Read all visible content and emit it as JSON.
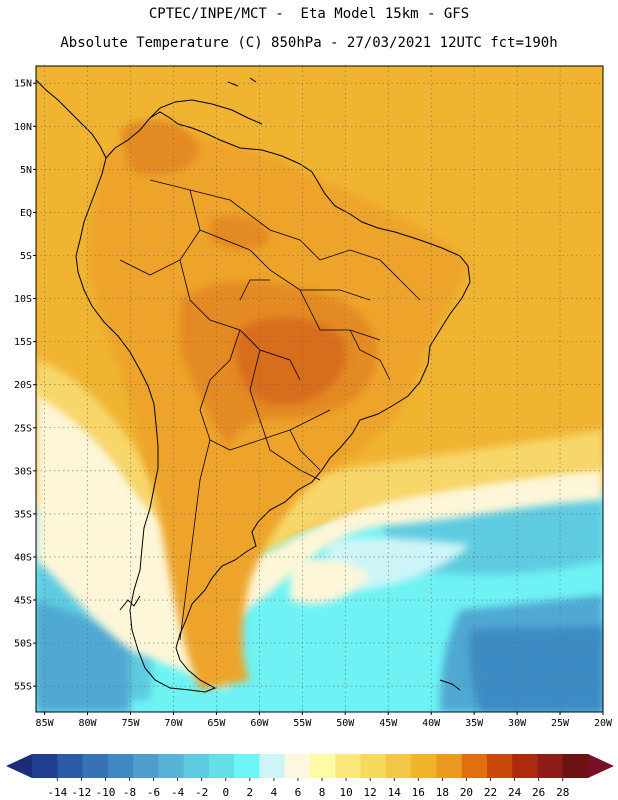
{
  "header": {
    "line1": "CPTEC/INPE/MCT -  Eta Model 15km - GFS",
    "line2": "Absolute Temperature (C) 850hPa - 27/03/2021 12UTC fct=190h"
  },
  "map": {
    "lat_labels": [
      "15N",
      "10N",
      "5N",
      "EQ",
      "5S",
      "10S",
      "15S",
      "20S",
      "25S",
      "30S",
      "35S",
      "40S",
      "45S",
      "50S",
      "55S"
    ],
    "lon_labels": [
      "85W",
      "80W",
      "75W",
      "70W",
      "65W",
      "60W",
      "55W",
      "50W",
      "45W",
      "40W",
      "35W",
      "30W",
      "25W",
      "20W"
    ]
  },
  "colorbar": {
    "labels": [
      "-14",
      "-12",
      "-10",
      "-8",
      "-6",
      "-4",
      "-2",
      "0",
      "2",
      "4",
      "6",
      "8",
      "10",
      "12",
      "14",
      "16",
      "18",
      "20",
      "22",
      "24",
      "26",
      "28"
    ],
    "colors": [
      "#1f3e8f",
      "#2b5aa6",
      "#3672b5",
      "#4187c2",
      "#4d9dcd",
      "#57b4d6",
      "#5fcbe0",
      "#64dfe8",
      "#6df6f6",
      "#cdf5f8",
      "#fdf7e0",
      "#fffaa6",
      "#fbe87a",
      "#f7d95e",
      "#f2c646",
      "#efb427",
      "#ea9a1f",
      "#e06f0f",
      "#c9480b",
      "#ad2b0d",
      "#8e1c16",
      "#6b1313"
    ],
    "left_arrow_color": "#1a2d7a",
    "right_arrow_color": "#7a0f2a"
  },
  "palette": {
    "ocean_north": "#f0b431",
    "land_base": "#eea42a",
    "hot_1": "#e48a22",
    "hot_2": "#d86d1c",
    "warm_band": "#f7d76a",
    "pale": "#fdf6d8",
    "light_cyan": "#cdf5f8",
    "cyan": "#6ef2f4",
    "mid_blue": "#5fcbe0",
    "blue": "#4fa9d3",
    "deep_blue": "#3e8bc4"
  }
}
